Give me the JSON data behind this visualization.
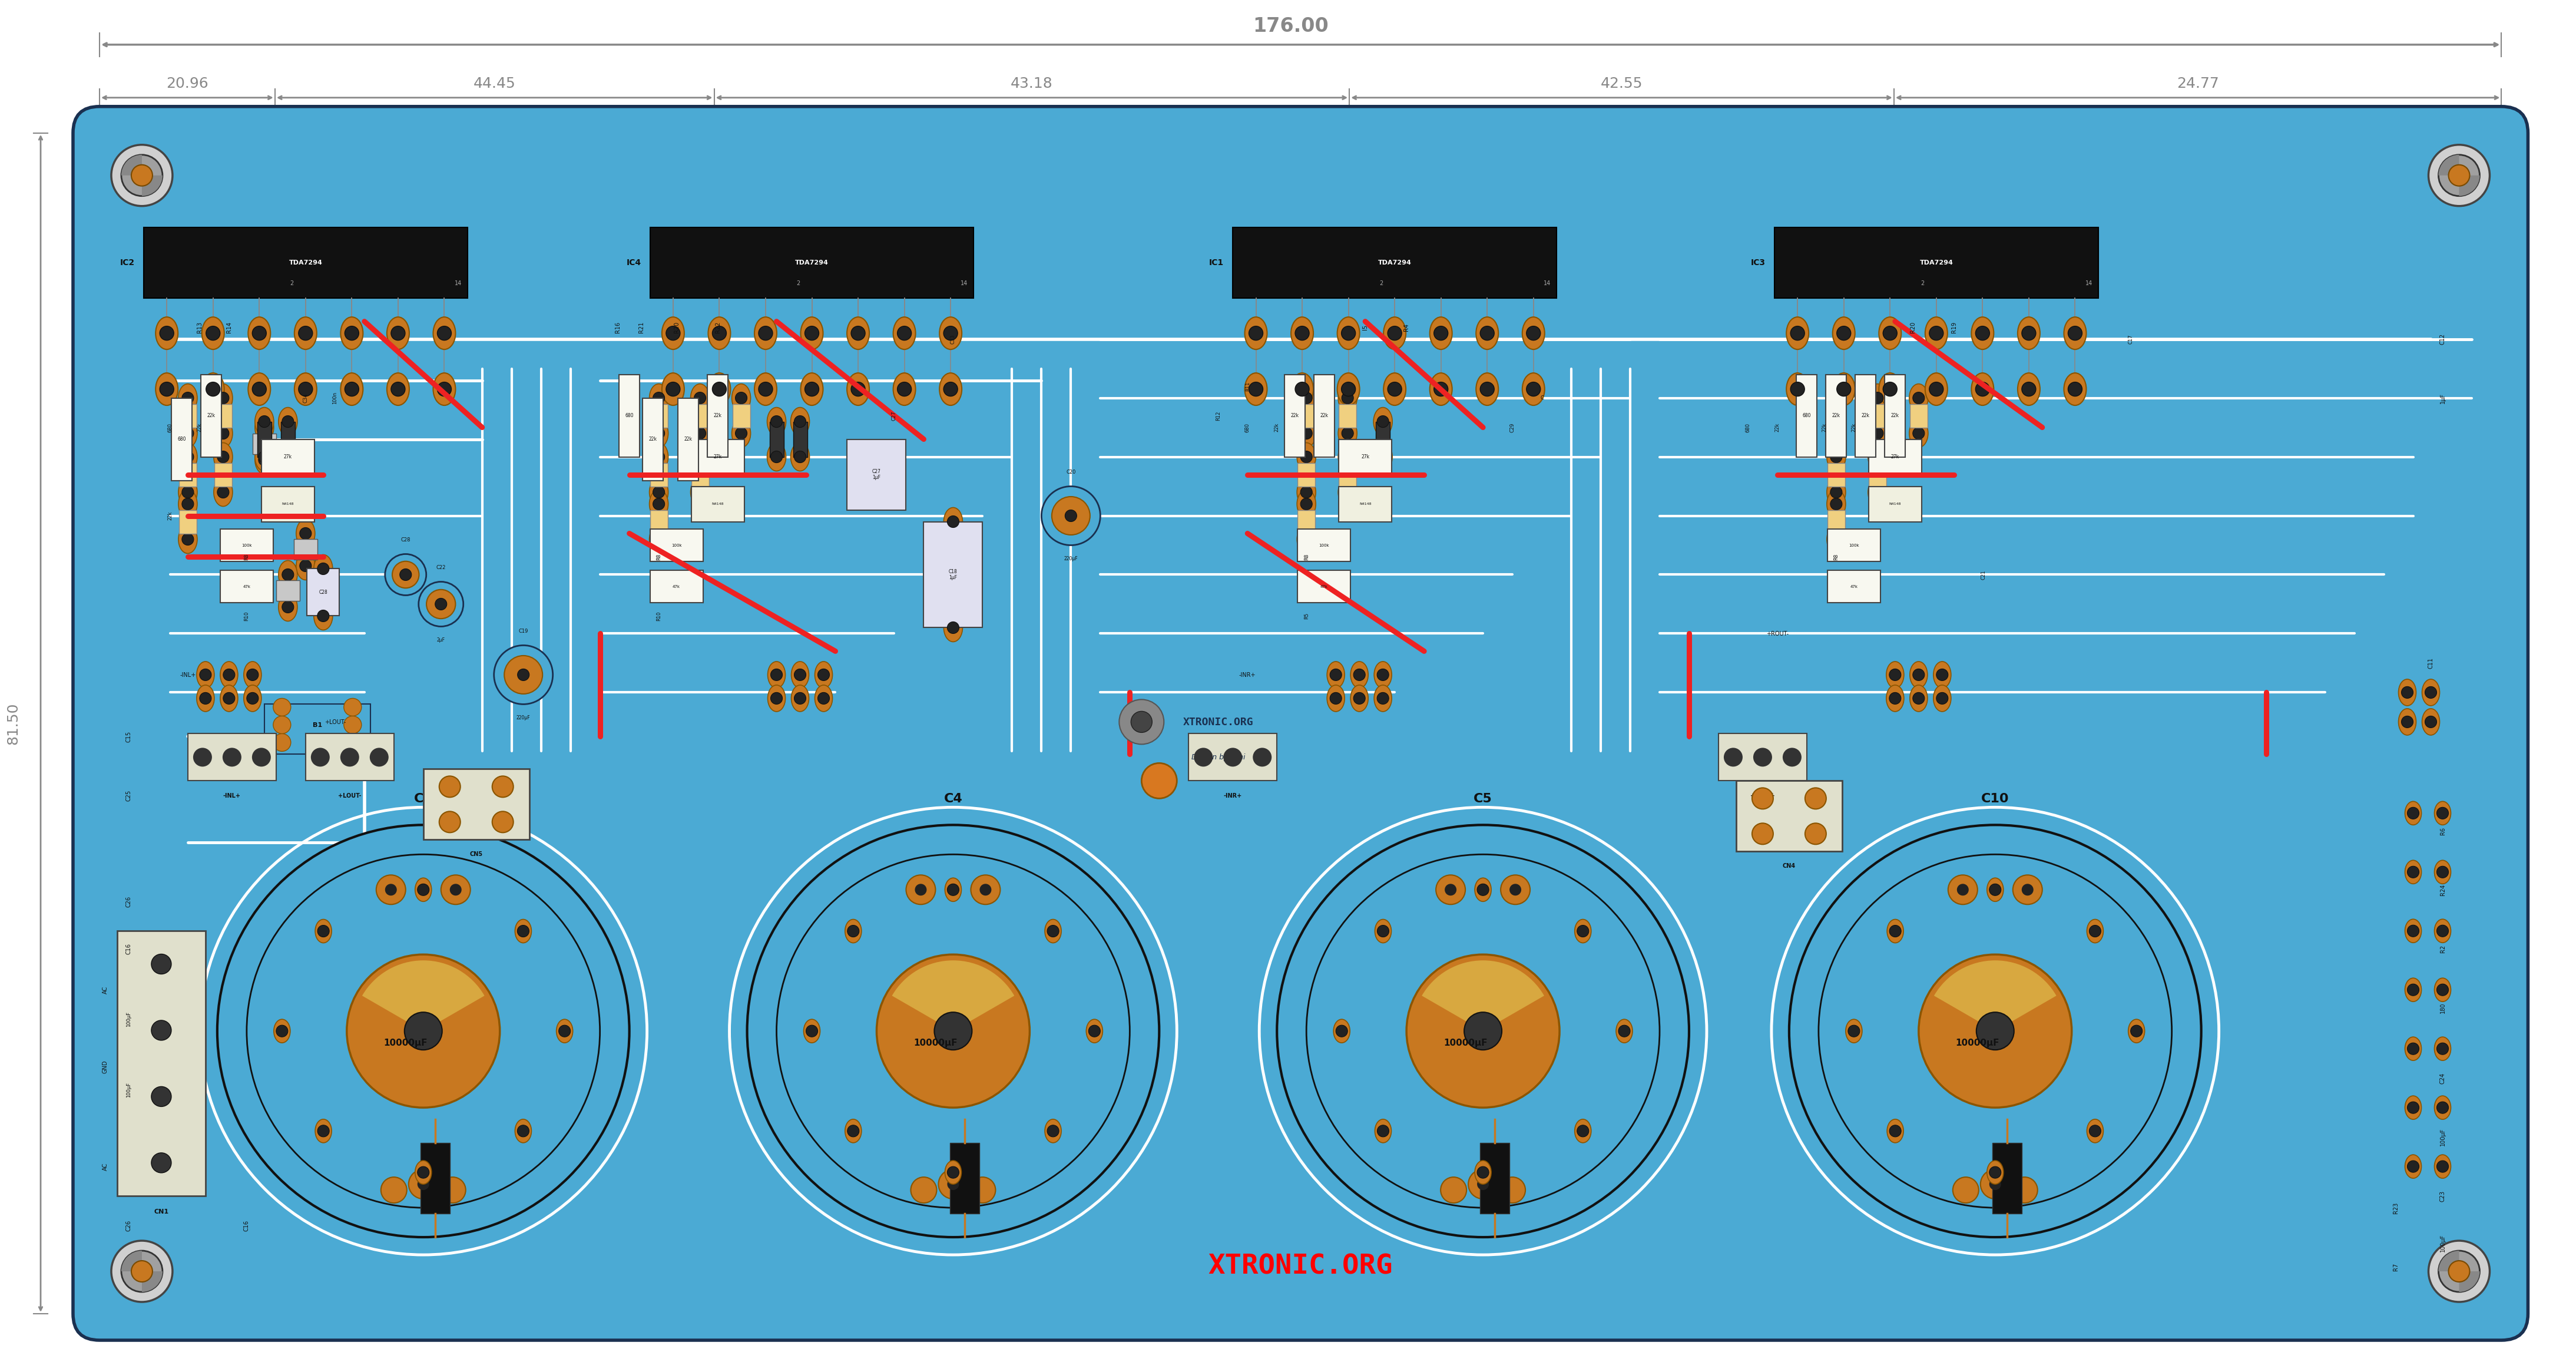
{
  "bg_color": "#ffffff",
  "pcb_blue": "#4baad4",
  "pcb_blue_light": "#5cc0e8",
  "pcb_blue_dark": "#2d8ab5",
  "board_border": "#1a3a5c",
  "title_dim": "176.00",
  "sub_dims": [
    "20.96",
    "44.45",
    "43.18",
    "42.55",
    "24.77"
  ],
  "side_dim": "81.50",
  "red_color": "#ee2222",
  "white_trace": "#ffffff",
  "black_ic": "#111111",
  "pin_color": "#c87820",
  "pin_dark": "#8B5500",
  "gray_metal": "#888888",
  "screw_outer": "#b0b0b0",
  "xtronic_red": "#ff0000",
  "xtronic_text": "XTRONIC.ORG",
  "design_text": "Design by Toni",
  "cap_labels": [
    "C9",
    "C4",
    "C5",
    "C10"
  ],
  "cap_values": [
    "10000μF",
    "10000μF",
    "10000μF",
    "10000μF"
  ],
  "ic_refs": [
    "IC2",
    "IC4",
    "IC1",
    "IC3"
  ],
  "dim_color": "#888888",
  "component_tan": "#c87820",
  "component_dark": "#7a4a00"
}
